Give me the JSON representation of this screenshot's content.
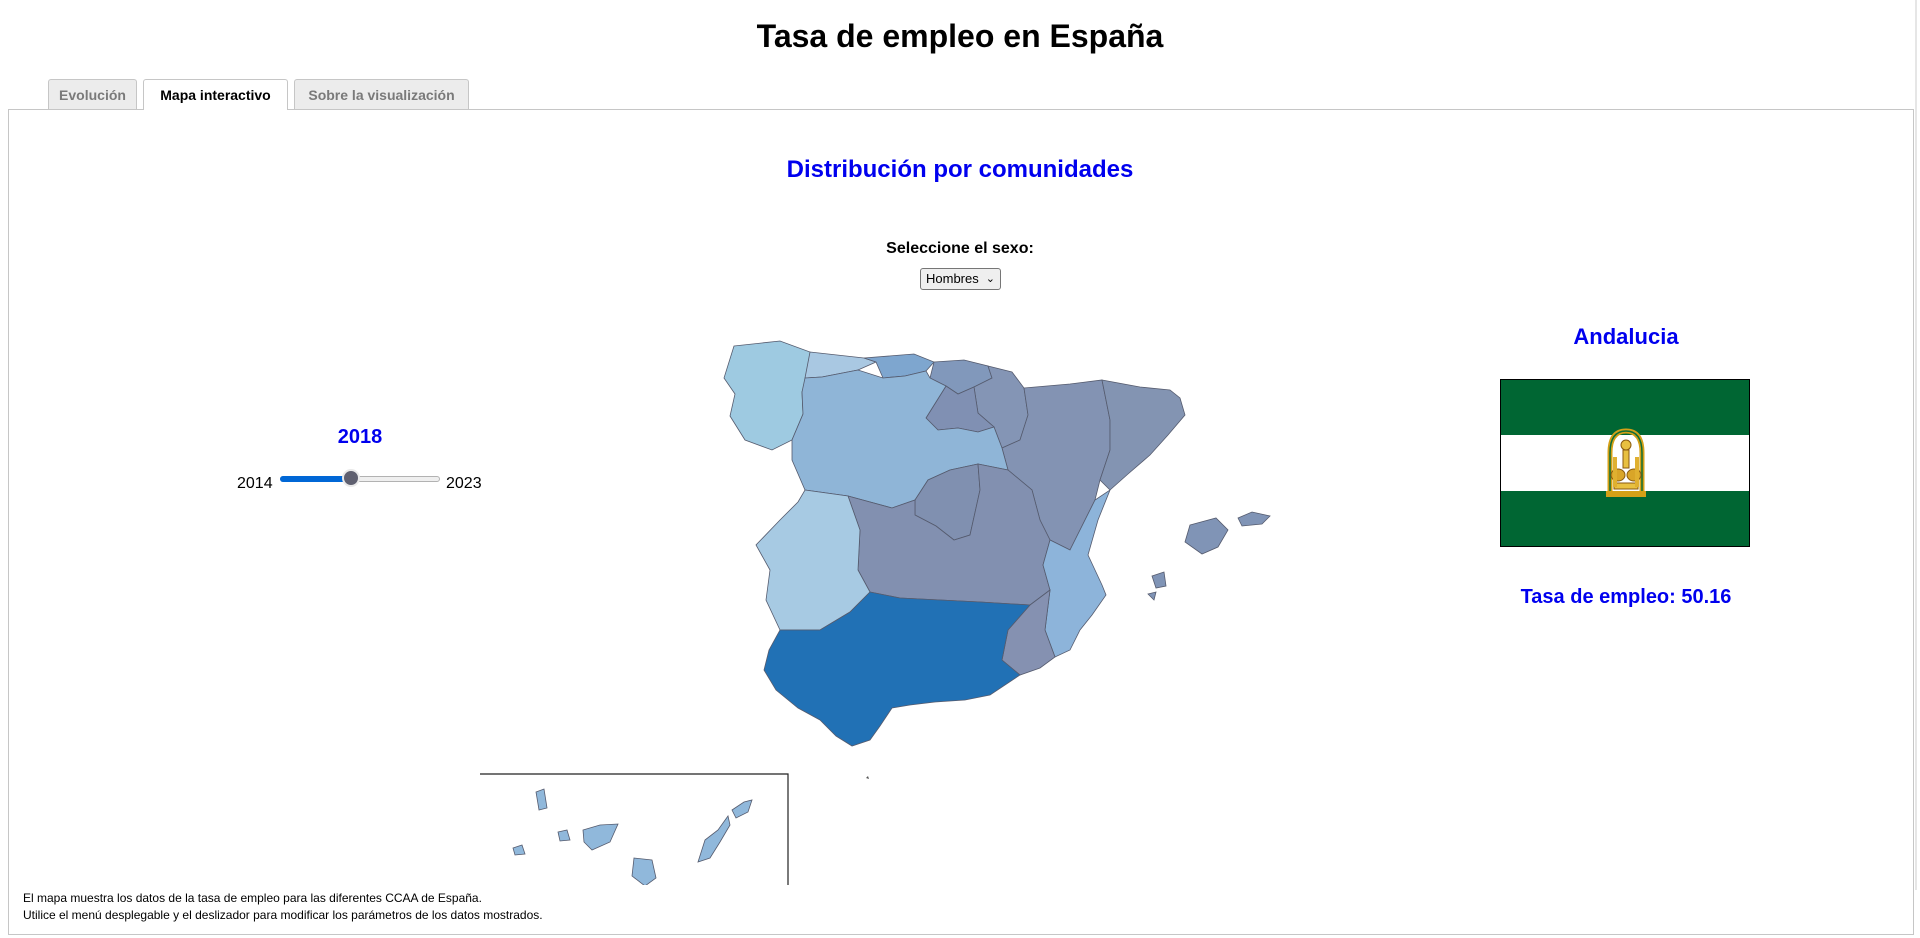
{
  "header": {
    "title": "Tasa de empleo en España"
  },
  "tabs": [
    {
      "label": "Evolución",
      "active": false
    },
    {
      "label": "Mapa interactivo",
      "active": true
    },
    {
      "label": "Sobre la visualización",
      "active": false
    }
  ],
  "map_panel": {
    "section_title": "Distribución por comunidades",
    "sex_filter": {
      "label": "Seleccione el sexo:",
      "selected": "Hombres"
    },
    "year_slider": {
      "value": "2018",
      "min": "2014",
      "max": "2023",
      "position_fraction": 0.444
    },
    "selected_region": {
      "name": "Andalucia",
      "flag_colors": [
        "#006633",
        "#ffffff",
        "#006633"
      ],
      "employment_rate_text": "Tasa de empleo: 50.16"
    },
    "region_colors": {
      "andalucia": "#2171b5",
      "galicia": "#9ecae1",
      "castilla_leon": "#8fb5d7",
      "asturias": "#a9c8e2",
      "cantabria": "#7ea6cf",
      "pais_vasco": "#8198bb",
      "navarra": "#8495b5",
      "la_rioja": "#8090b3",
      "aragon": "#8393b3",
      "cataluna": "#8394b2",
      "madrid": "#8090b0",
      "castilla_la_mancha": "#8290b0",
      "extremadura": "#a7cae3",
      "comunidad_valenciana": "#8db4da",
      "murcia": "#8591b1",
      "baleares": "#8094b6",
      "canarias": "#90b8db",
      "map_stroke": "#555b6e"
    },
    "footer_lines": [
      "El mapa muestra los datos de la tasa de empleo para las diferentes CCAA de España.",
      "Utilice el menú desplegable y el deslizador para modificar los parámetros de los datos mostrados."
    ]
  }
}
